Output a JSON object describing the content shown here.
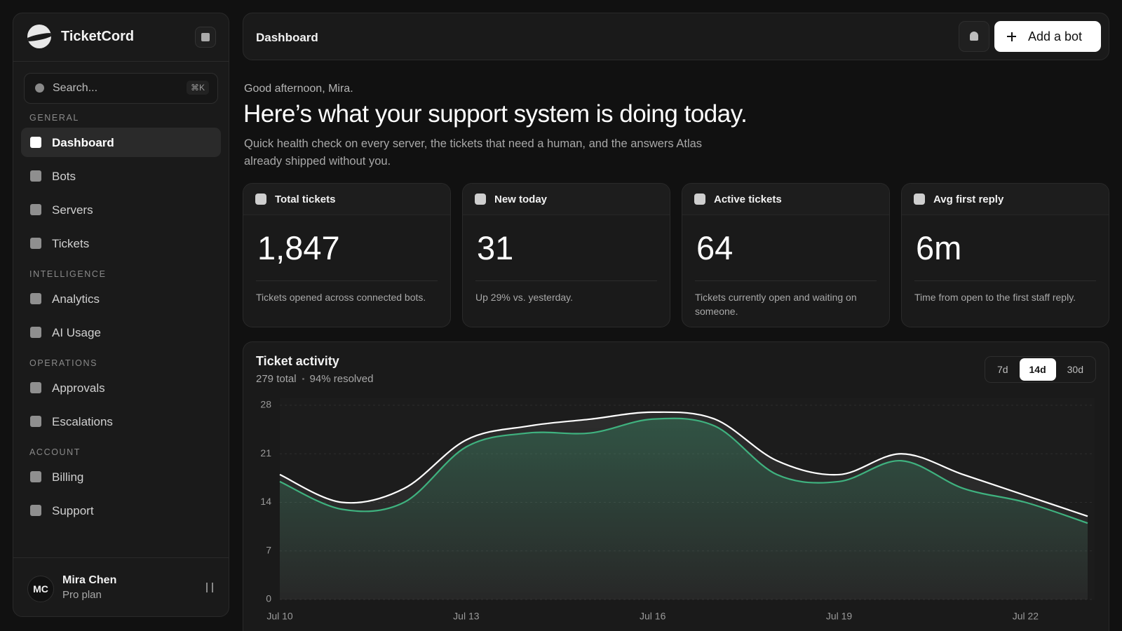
{
  "sidebar": {
    "brand": "TicketCord",
    "search": "Search...",
    "shortcut": "⌘K",
    "sections": [
      {
        "title": "GENERAL",
        "items": [
          "Dashboard",
          "Bots",
          "Servers",
          "Tickets"
        ]
      },
      {
        "title": "INTELLIGENCE",
        "items": [
          "Analytics",
          "AI Usage"
        ]
      },
      {
        "title": "OPERATIONS",
        "items": [
          "Approvals",
          "Escalations"
        ]
      },
      {
        "title": "ACCOUNT",
        "items": [
          "Billing",
          "Support"
        ]
      }
    ],
    "user": {
      "initials": "MC",
      "name": "Mira Chen",
      "plan": "Pro plan"
    }
  },
  "header": {
    "title": "Dashboard",
    "button": "Add a bot"
  },
  "intro": {
    "greeting": "Good afternoon, Mira.",
    "headline": "Here’s what your support system is doing today.",
    "description": "Quick health check on every server, the tickets that need a human, and the answers Atlas already shipped without you."
  },
  "stats": [
    {
      "label": "Total tickets",
      "value": "1,847",
      "note": "Tickets opened across connected bots."
    },
    {
      "label": "New today",
      "value": "31",
      "note": "Up 29% vs. yesterday."
    },
    {
      "label": "Active tickets",
      "value": "64",
      "note": "Tickets currently open and waiting on someone."
    },
    {
      "label": "Avg first reply",
      "value": "6m",
      "note": "Time from open to the first staff reply."
    }
  ],
  "activity": {
    "title": "Ticket activity",
    "total": "279 total",
    "resolved": "94% resolved",
    "ranges": [
      "7d",
      "14d",
      "30d"
    ]
  },
  "chart_data": {
    "type": "line",
    "categories": [
      "Jul 10",
      null,
      null,
      "Jul 13",
      null,
      null,
      "Jul 16",
      null,
      null,
      "Jul 19",
      null,
      null,
      "Jul 22",
      null
    ],
    "series": [
      {
        "color": "#ffffff",
        "values": [
          18,
          14,
          16,
          23,
          25,
          26,
          27,
          26,
          20,
          18,
          21,
          18,
          15,
          12
        ]
      },
      {
        "color": "#3fb27f",
        "values": [
          17,
          13,
          14,
          22,
          24,
          24,
          26,
          25,
          18,
          17,
          20,
          16,
          14,
          11
        ]
      }
    ],
    "ylim": [
      0,
      28
    ],
    "yticks": [
      0,
      7,
      14,
      21,
      28
    ],
    "grid": true
  }
}
